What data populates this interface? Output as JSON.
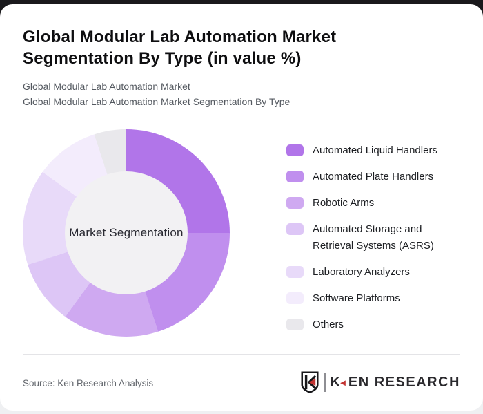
{
  "page": {
    "top_band_color": "#1a191c",
    "card_background": "#ffffff",
    "outer_background": "#eff0f2"
  },
  "header": {
    "title": "Global Modular Lab Automation Market Segmentation By Type (in value %)",
    "subtitle_line1": "Global Modular Lab Automation Market",
    "subtitle_line2": "Global Modular Lab Automation Market Segmentation By Type"
  },
  "chart_data": {
    "type": "pie",
    "variant": "donut",
    "title": "Global Modular Lab Automation Market Segmentation By Type (in value %)",
    "unit": "value %",
    "center_label": "Market Segmentation",
    "legend_position": "right",
    "start_angle_deg": 0,
    "hole_color": "#f2f1f3",
    "segments": [
      {
        "label": "Automated Liquid Handlers",
        "value": 25,
        "color": "#b175e9"
      },
      {
        "label": "Automated Plate Handlers",
        "value": 20,
        "color": "#c08fee"
      },
      {
        "label": "Robotic Arms",
        "value": 15,
        "color": "#cfa9f1"
      },
      {
        "label": "Automated Storage and Retrieval Systems (ASRS)",
        "value": 10,
        "color": "#ddc6f6"
      },
      {
        "label": "Laboratory Analyzers",
        "value": 15,
        "color": "#e8daf9"
      },
      {
        "label": "Software Platforms",
        "value": 10,
        "color": "#f3ecfc"
      },
      {
        "label": "Others",
        "value": 5,
        "color": "#e9e8ec"
      }
    ]
  },
  "footer": {
    "source": "Source: Ken Research Analysis",
    "brand_k": "K",
    "brand_rest": "EN RESEARCH"
  }
}
